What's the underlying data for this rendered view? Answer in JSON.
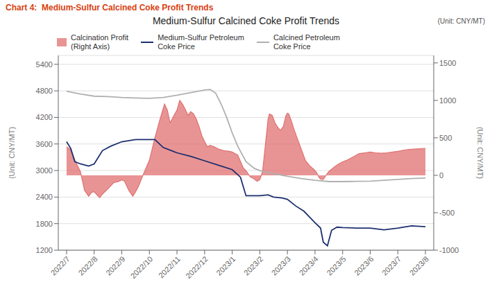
{
  "chart_data": {
    "type": "line",
    "title": "Medium-Sulfur Calcined Coke Profit Trends",
    "annotations": [
      "Chart 4:  Medium-Sulfur Calcined Coke Profit Trends",
      "(Unit: CNY/MT)"
    ],
    "ylabel": "(Unit: CNY/MT)",
    "y2label": "(Unit: CNY/MT)",
    "xlim": [
      -0.3,
      13.3
    ],
    "xticks": [
      {
        "value": 0,
        "label": "2022/7"
      },
      {
        "value": 1,
        "label": "2022/8"
      },
      {
        "value": 2,
        "label": "2022/9"
      },
      {
        "value": 3,
        "label": "2022/10"
      },
      {
        "value": 4,
        "label": "2022/11"
      },
      {
        "value": 5,
        "label": "2022/12"
      },
      {
        "value": 6,
        "label": "2023/1"
      },
      {
        "value": 7,
        "label": "2023/2"
      },
      {
        "value": 8,
        "label": "2023/3"
      },
      {
        "value": 9,
        "label": "2023/4"
      },
      {
        "value": 10,
        "label": "2023/5"
      },
      {
        "value": 11,
        "label": "2023/6"
      },
      {
        "value": 12,
        "label": "2023/7"
      },
      {
        "value": 13,
        "label": "2023/8"
      }
    ],
    "ylim": [
      1200,
      5600
    ],
    "yticks": [
      1200,
      1800,
      2400,
      3000,
      3600,
      4200,
      4800,
      5400
    ],
    "y2lim": [
      -1000,
      1600
    ],
    "y2ticks": [
      -1000,
      -500,
      0,
      500,
      1000,
      1500
    ],
    "grid": true,
    "legend": "upper left",
    "series": [
      {
        "name": "Calcination Profit\n(Right Axis)",
        "type": "area",
        "axis": "y2",
        "color": "#e07070",
        "x": [
          0,
          0.15,
          0.3,
          0.5,
          0.65,
          0.8,
          0.9,
          1.0,
          1.1,
          1.2,
          1.3,
          1.5,
          1.7,
          1.9,
          2.0,
          2.1,
          2.25,
          2.4,
          2.5,
          2.6,
          2.8,
          3.0,
          3.1,
          3.2,
          3.35,
          3.45,
          3.55,
          3.65,
          3.75,
          3.85,
          4.0,
          4.1,
          4.2,
          4.3,
          4.4,
          4.5,
          4.6,
          4.7,
          4.8,
          4.9,
          5.0,
          5.1,
          5.2,
          5.35,
          5.5,
          5.7,
          5.9,
          6.0,
          6.2,
          6.4,
          6.5,
          6.65,
          6.8,
          6.9,
          7.0,
          7.1,
          7.2,
          7.3,
          7.35,
          7.45,
          7.55,
          7.65,
          7.75,
          7.85,
          7.95,
          8.0,
          8.05,
          8.15,
          8.25,
          8.35,
          8.45,
          8.55,
          8.65,
          8.8,
          8.95,
          9.05,
          9.15,
          9.2,
          9.3,
          9.4,
          9.5,
          9.6,
          9.7,
          9.85,
          10.0,
          10.2,
          10.4,
          10.6,
          10.8,
          11.0,
          11.2,
          11.4,
          11.6,
          11.8,
          12.0,
          12.2,
          12.4,
          12.6,
          12.8,
          13.0
        ],
        "values": [
          380,
          340,
          200,
          50,
          -200,
          -280,
          -230,
          -220,
          -260,
          -300,
          -250,
          -180,
          -100,
          -80,
          -60,
          -80,
          -200,
          -280,
          -220,
          -150,
          30,
          200,
          350,
          500,
          700,
          830,
          950,
          870,
          700,
          770,
          870,
          1000,
          950,
          880,
          800,
          850,
          820,
          750,
          650,
          530,
          450,
          380,
          400,
          380,
          350,
          330,
          320,
          310,
          270,
          100,
          60,
          -20,
          -50,
          -80,
          -60,
          50,
          400,
          750,
          820,
          800,
          700,
          640,
          600,
          650,
          800,
          830,
          820,
          720,
          600,
          500,
          400,
          300,
          200,
          130,
          80,
          40,
          -30,
          -50,
          -55,
          0,
          50,
          80,
          110,
          150,
          180,
          210,
          250,
          290,
          300,
          310,
          300,
          295,
          300,
          310,
          320,
          335,
          345,
          350,
          355,
          360
        ]
      },
      {
        "name": "Medium-Sulfur Petroleum\nCoke Price",
        "type": "line",
        "axis": "y",
        "color": "#1a2f6e",
        "x": [
          0,
          0.15,
          0.3,
          0.5,
          0.8,
          1.0,
          1.3,
          1.6,
          2.0,
          2.5,
          3.0,
          3.2,
          3.5,
          3.8,
          4.0,
          4.5,
          5.0,
          5.5,
          6.0,
          6.3,
          6.5,
          6.8,
          7.0,
          7.3,
          7.5,
          7.8,
          8.0,
          8.3,
          8.6,
          8.8,
          9.0,
          9.2,
          9.3,
          9.45,
          9.6,
          9.8,
          10.0,
          10.5,
          11.0,
          11.5,
          12.0,
          12.5,
          13.0
        ],
        "values": [
          3650,
          3500,
          3200,
          3150,
          3100,
          3150,
          3450,
          3550,
          3650,
          3700,
          3700,
          3700,
          3520,
          3450,
          3400,
          3320,
          3220,
          3120,
          3020,
          2850,
          2430,
          2430,
          2430,
          2450,
          2400,
          2380,
          2350,
          2200,
          2080,
          1950,
          1820,
          1700,
          1380,
          1300,
          1650,
          1720,
          1710,
          1700,
          1700,
          1660,
          1700,
          1750,
          1730
        ]
      },
      {
        "name": "Calcined Petroleum\nCoke Price",
        "type": "line",
        "axis": "y",
        "color": "#b0b0b0",
        "x": [
          0,
          0.5,
          1.0,
          1.5,
          2.0,
          2.5,
          3.0,
          3.5,
          4.0,
          4.5,
          5.0,
          5.2,
          5.4,
          5.6,
          5.8,
          6.0,
          6.2,
          6.5,
          6.8,
          7.0,
          7.5,
          8.0,
          8.5,
          9.0,
          9.5,
          10.0,
          10.5,
          11.0,
          11.5,
          12.0,
          12.5,
          13.0
        ],
        "values": [
          4790,
          4730,
          4680,
          4670,
          4650,
          4640,
          4630,
          4650,
          4700,
          4760,
          4820,
          4830,
          4750,
          4500,
          4200,
          3850,
          3550,
          3200,
          3050,
          3000,
          2930,
          2870,
          2820,
          2780,
          2750,
          2750,
          2755,
          2760,
          2780,
          2800,
          2820,
          2830
        ]
      }
    ]
  }
}
